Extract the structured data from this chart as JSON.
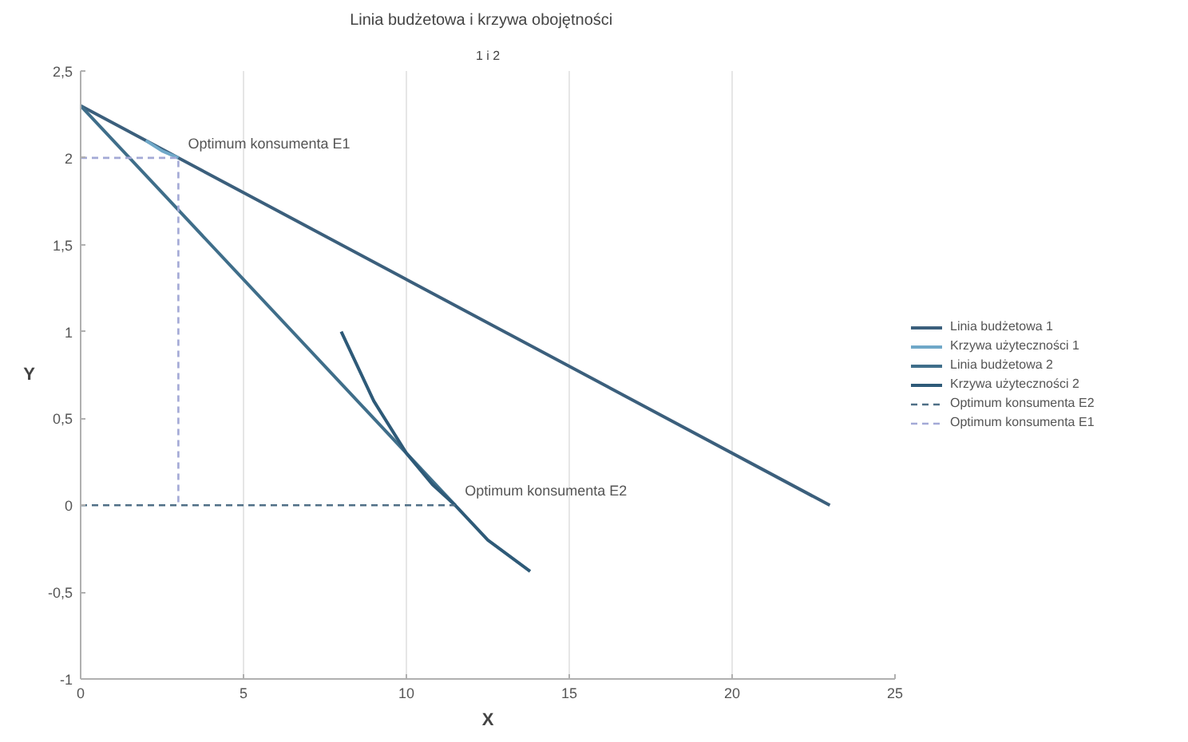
{
  "chart_data": {
    "type": "line",
    "title": "Linia budżetowa  i   krzywa obojętności",
    "subtitle": "1 i 2",
    "xlabel": "X",
    "ylabel": "Y",
    "xlim": [
      0,
      25
    ],
    "ylim": [
      -1,
      2.5
    ],
    "xticks": [
      0,
      5,
      10,
      15,
      20,
      25
    ],
    "yticks": [
      {
        "value": -1,
        "label": "-1"
      },
      {
        "value": -0.5,
        "label": "-0,5"
      },
      {
        "value": 0,
        "label": "0"
      },
      {
        "value": 0.5,
        "label": "0,5"
      },
      {
        "value": 1,
        "label": "1"
      },
      {
        "value": 1.5,
        "label": "1,5"
      },
      {
        "value": 2,
        "label": "2"
      },
      {
        "value": 2.5,
        "label": "2,5"
      }
    ],
    "grid": "x",
    "legend": "right",
    "marker": "none",
    "series": [
      {
        "name": "Linia budżetowa 1",
        "color": "#3b5f7c",
        "x": [
          0,
          23
        ],
        "values": [
          2.3,
          0
        ],
        "line_style": "solid"
      },
      {
        "name": "Krzywa użyteczności 1",
        "color": "#6fa8c8",
        "x": [
          2,
          2.5,
          3
        ],
        "values": [
          2.1,
          2.04,
          2.0
        ],
        "line_style": "solid"
      },
      {
        "name": "Linia budżetowa 2",
        "color": "#3f6e8a",
        "x": [
          0,
          11.5
        ],
        "values": [
          2.3,
          0
        ],
        "line_style": "solid"
      },
      {
        "name": "Krzywa użyteczności 2",
        "color": "#2e5a78",
        "x": [
          8,
          9,
          10,
          10.8,
          11.5,
          12.5,
          13.8
        ],
        "values": [
          1,
          0.6,
          0.3,
          0.12,
          0,
          -0.2,
          -0.38
        ],
        "line_style": "solid"
      },
      {
        "name": "Optimum konsumenta E2",
        "color": "#4f6f86",
        "x": [
          0,
          11.5
        ],
        "values": [
          0,
          0
        ],
        "line_style": "dashed"
      },
      {
        "name": "Optimum konsumenta E1",
        "color": "#a3a9d6",
        "x": [
          0,
          3,
          3
        ],
        "values": [
          2,
          2,
          0
        ],
        "line_style": "dashed"
      }
    ],
    "annotations": [
      {
        "text": "Optimum konsumenta E1",
        "x": 3,
        "y": 2
      },
      {
        "text": "Optimum konsumenta E2",
        "x": 11.5,
        "y": 0
      }
    ]
  }
}
